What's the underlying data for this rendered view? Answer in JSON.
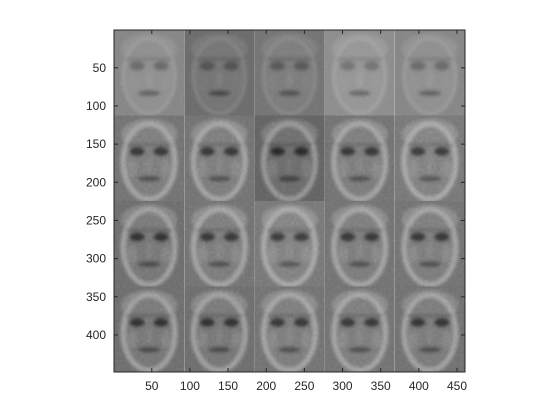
{
  "chart_data": {
    "type": "heatmap",
    "title": "",
    "xlabel": "",
    "ylabel": "",
    "xlim": [
      0.5,
      460.5
    ],
    "ylim": [
      0.5,
      448.5
    ],
    "y_reversed": true,
    "grid": false,
    "colormap": "gray",
    "x_ticks": [
      50,
      100,
      150,
      200,
      250,
      300,
      350,
      400,
      450
    ],
    "x_tick_labels": [
      "50",
      "100",
      "150",
      "200",
      "250",
      "300",
      "350",
      "400",
      "450"
    ],
    "y_ticks": [
      50,
      100,
      150,
      200,
      250,
      300,
      350,
      400
    ],
    "y_tick_labels": [
      "50",
      "100",
      "150",
      "200",
      "250",
      "300",
      "350",
      "400"
    ],
    "tiles": {
      "rows": 4,
      "cols": 5,
      "tile_width_data": 92,
      "tile_height_data": 112,
      "mean_gray": [
        [
          0.52,
          0.42,
          0.45,
          0.55,
          0.52
        ],
        [
          0.44,
          0.44,
          0.38,
          0.44,
          0.46
        ],
        [
          0.42,
          0.44,
          0.46,
          0.44,
          0.44
        ],
        [
          0.42,
          0.42,
          0.44,
          0.44,
          0.43
        ]
      ]
    },
    "colors": {
      "axis": "#262626",
      "background": "#ffffff"
    }
  }
}
